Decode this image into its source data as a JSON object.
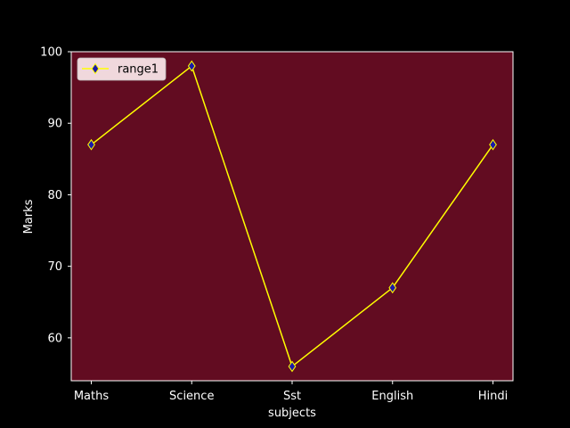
{
  "colors": {
    "figure_background": "#000000",
    "plot_background": "#620c21",
    "line": "#ffff00",
    "marker_fill": "#1a1aa8",
    "marker_edge": "#ffff00",
    "axis_text": "#ffffff",
    "legend_background": "#f0d8dc"
  },
  "chart_data": {
    "type": "line",
    "title": "",
    "xlabel": "subjects",
    "ylabel": "Marks",
    "categories": [
      "Maths",
      "Science",
      "Sst",
      "English",
      "Hindi"
    ],
    "series": [
      {
        "name": "range1",
        "values": [
          87,
          98,
          56,
          67,
          87
        ],
        "marker": "thin-diamond"
      }
    ],
    "ylim": [
      54,
      100
    ],
    "yticks": [
      60,
      70,
      80,
      90,
      100
    ],
    "grid": false,
    "legend_position": "top-left"
  }
}
